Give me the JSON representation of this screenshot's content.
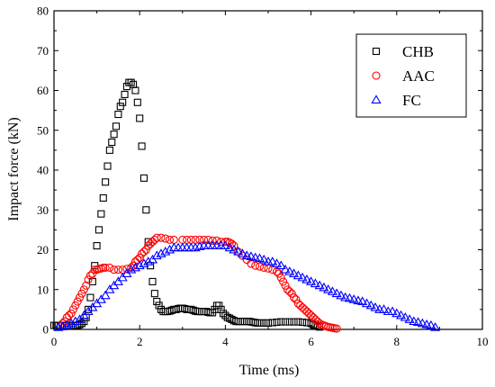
{
  "chart_data": {
    "type": "scatter",
    "xlabel": "Time (ms)",
    "ylabel": "Impact force (kN)",
    "xlim": [
      0,
      10
    ],
    "ylim": [
      0,
      80
    ],
    "xticks": [
      0,
      2,
      4,
      6,
      8,
      10
    ],
    "yticks": [
      0,
      10,
      20,
      30,
      40,
      50,
      60,
      70,
      80
    ],
    "grid": false,
    "legend_position": "top-right",
    "series": [
      {
        "name": "CHB",
        "marker": "square",
        "color": "#000000",
        "x": [
          0.0,
          0.05,
          0.1,
          0.15,
          0.2,
          0.25,
          0.3,
          0.35,
          0.4,
          0.45,
          0.5,
          0.55,
          0.6,
          0.65,
          0.7,
          0.75,
          0.8,
          0.85,
          0.9,
          0.95,
          1.0,
          1.05,
          1.1,
          1.15,
          1.2,
          1.25,
          1.3,
          1.35,
          1.4,
          1.45,
          1.5,
          1.55,
          1.6,
          1.65,
          1.7,
          1.75,
          1.8,
          1.85,
          1.9,
          1.95,
          2.0,
          2.05,
          2.1,
          2.15,
          2.2,
          2.25,
          2.3,
          2.35,
          2.4,
          2.45,
          2.5,
          2.55,
          2.6,
          2.65,
          2.7,
          2.75,
          2.8,
          2.85,
          2.9,
          2.95,
          3.0,
          3.05,
          3.1,
          3.15,
          3.2,
          3.25,
          3.3,
          3.35,
          3.4,
          3.45,
          3.5,
          3.55,
          3.6,
          3.65,
          3.7,
          3.75,
          3.8,
          3.85,
          3.9,
          3.95,
          4.0,
          4.05,
          4.1,
          4.15,
          4.2,
          4.25,
          4.3,
          4.35,
          4.4,
          4.45,
          4.5,
          4.55,
          4.6,
          4.65,
          4.7,
          4.75,
          4.8,
          4.85,
          4.9,
          4.95,
          5.0,
          5.1,
          5.2,
          5.3,
          5.4,
          5.5,
          5.6,
          5.7,
          5.8,
          5.9,
          6.0,
          6.05,
          6.1,
          6.15,
          6.2
        ],
        "y": [
          1.0,
          1.0,
          1.0,
          1.0,
          1.0,
          1.0,
          1.0,
          1.0,
          1.0,
          1.0,
          1.0,
          1.0,
          1.2,
          1.5,
          2.0,
          3.0,
          5.0,
          8.0,
          12.0,
          16.0,
          21.0,
          25.0,
          29.0,
          33.0,
          37.0,
          41.0,
          45.0,
          47.0,
          49.0,
          51.0,
          54.0,
          56.0,
          57.0,
          59.0,
          61.0,
          62.0,
          62.0,
          61.5,
          60.0,
          57.0,
          53.0,
          46.0,
          38.0,
          30.0,
          22.0,
          16.0,
          12.0,
          9.0,
          7.0,
          6.0,
          5.0,
          4.5,
          4.5,
          4.5,
          4.6,
          4.8,
          5.0,
          5.0,
          5.2,
          5.3,
          5.3,
          5.2,
          5.0,
          5.0,
          5.0,
          4.8,
          4.6,
          4.5,
          4.5,
          4.5,
          4.5,
          4.5,
          4.3,
          4.2,
          4.2,
          5.0,
          6.0,
          6.0,
          5.0,
          4.0,
          3.5,
          3.0,
          2.8,
          2.5,
          2.2,
          2.0,
          2.0,
          2.0,
          2.0,
          2.0,
          2.0,
          2.0,
          1.9,
          1.8,
          1.7,
          1.6,
          1.6,
          1.6,
          1.6,
          1.6,
          1.6,
          1.7,
          1.8,
          1.9,
          1.9,
          1.9,
          1.9,
          1.9,
          1.8,
          1.7,
          1.5,
          1.2,
          1.0,
          0.8,
          0.6
        ]
      },
      {
        "name": "AAC",
        "marker": "circle",
        "color": "#ff0000",
        "x": [
          0.2,
          0.25,
          0.3,
          0.35,
          0.4,
          0.45,
          0.5,
          0.55,
          0.6,
          0.65,
          0.7,
          0.75,
          0.8,
          0.85,
          0.9,
          0.95,
          1.0,
          1.05,
          1.1,
          1.15,
          1.2,
          1.3,
          1.4,
          1.5,
          1.6,
          1.7,
          1.8,
          1.85,
          1.9,
          1.95,
          2.0,
          2.05,
          2.1,
          2.15,
          2.2,
          2.25,
          2.3,
          2.35,
          2.4,
          2.5,
          2.6,
          2.7,
          2.8,
          3.0,
          3.1,
          3.2,
          3.3,
          3.4,
          3.5,
          3.6,
          3.7,
          3.8,
          3.9,
          4.0,
          4.05,
          4.1,
          4.15,
          4.2,
          4.3,
          4.4,
          4.5,
          4.6,
          4.7,
          4.8,
          4.9,
          5.0,
          5.1,
          5.2,
          5.25,
          5.3,
          5.35,
          5.4,
          5.45,
          5.5,
          5.55,
          5.6,
          5.65,
          5.7,
          5.75,
          5.8,
          5.85,
          5.9,
          5.95,
          6.0,
          6.05,
          6.1,
          6.15,
          6.2,
          6.25,
          6.3,
          6.35,
          6.4,
          6.45,
          6.5,
          6.55,
          6.6
        ],
        "y": [
          1.5,
          2.0,
          3.0,
          3.5,
          4.0,
          5.0,
          6.0,
          7.0,
          8.0,
          9.0,
          10.0,
          11.0,
          12.5,
          13.5,
          14.0,
          15.0,
          15.0,
          15.2,
          15.3,
          15.5,
          15.5,
          15.5,
          15.0,
          15.0,
          15.0,
          15.2,
          15.5,
          16.0,
          17.0,
          17.5,
          18.0,
          19.0,
          19.5,
          20.0,
          21.0,
          21.5,
          22.0,
          22.5,
          23.0,
          23.0,
          22.8,
          22.5,
          22.5,
          22.5,
          22.5,
          22.5,
          22.5,
          22.5,
          22.5,
          22.5,
          22.3,
          22.3,
          22.0,
          22.0,
          22.0,
          21.8,
          21.5,
          21.0,
          19.5,
          18.5,
          17.5,
          16.5,
          16.0,
          15.8,
          15.5,
          15.3,
          15.0,
          14.5,
          14.0,
          13.0,
          12.0,
          11.0,
          10.0,
          9.5,
          9.0,
          8.0,
          7.5,
          6.5,
          6.0,
          5.5,
          5.0,
          4.5,
          4.0,
          3.5,
          3.0,
          2.5,
          2.0,
          1.5,
          1.2,
          1.0,
          0.8,
          0.6,
          0.5,
          0.4,
          0.3,
          0.2
        ]
      },
      {
        "name": "FC",
        "marker": "triangle",
        "color": "#0000ff",
        "x": [
          0.1,
          0.2,
          0.3,
          0.4,
          0.5,
          0.6,
          0.7,
          0.8,
          0.9,
          1.0,
          1.1,
          1.2,
          1.3,
          1.4,
          1.5,
          1.6,
          1.7,
          1.8,
          1.9,
          2.0,
          2.1,
          2.2,
          2.3,
          2.4,
          2.5,
          2.6,
          2.7,
          2.8,
          2.9,
          3.0,
          3.1,
          3.2,
          3.3,
          3.4,
          3.5,
          3.6,
          3.7,
          3.8,
          3.9,
          4.0,
          4.1,
          4.2,
          4.3,
          4.4,
          4.5,
          4.6,
          4.7,
          4.8,
          4.9,
          5.0,
          5.1,
          5.2,
          5.3,
          5.4,
          5.5,
          5.6,
          5.7,
          5.8,
          5.9,
          6.0,
          6.1,
          6.2,
          6.3,
          6.4,
          6.5,
          6.6,
          6.7,
          6.8,
          6.9,
          7.0,
          7.1,
          7.2,
          7.3,
          7.4,
          7.5,
          7.6,
          7.7,
          7.8,
          7.9,
          8.0,
          8.1,
          8.2,
          8.3,
          8.4,
          8.5,
          8.6,
          8.7,
          8.8,
          8.9
        ],
        "y": [
          0.5,
          0.7,
          1.0,
          1.5,
          2.0,
          2.5,
          3.5,
          4.5,
          5.5,
          6.5,
          7.5,
          8.5,
          10.0,
          11.0,
          12.0,
          13.0,
          14.0,
          15.0,
          15.5,
          16.0,
          16.5,
          17.0,
          17.5,
          18.5,
          19.0,
          19.5,
          20.0,
          20.5,
          20.5,
          20.5,
          20.5,
          20.5,
          20.5,
          20.8,
          21.0,
          21.0,
          21.0,
          21.0,
          21.0,
          21.0,
          20.5,
          20.0,
          19.5,
          19.0,
          18.5,
          18.3,
          18.0,
          17.8,
          17.5,
          17.0,
          17.0,
          16.5,
          16.0,
          15.0,
          14.5,
          14.0,
          13.5,
          13.0,
          12.5,
          12.0,
          11.5,
          11.0,
          10.5,
          10.0,
          9.5,
          9.0,
          8.5,
          8.0,
          7.8,
          7.5,
          7.2,
          7.0,
          6.5,
          6.0,
          5.5,
          5.0,
          5.0,
          4.5,
          4.5,
          4.0,
          3.5,
          3.0,
          2.5,
          2.0,
          1.8,
          1.5,
          1.2,
          1.0,
          0.5
        ]
      }
    ]
  }
}
